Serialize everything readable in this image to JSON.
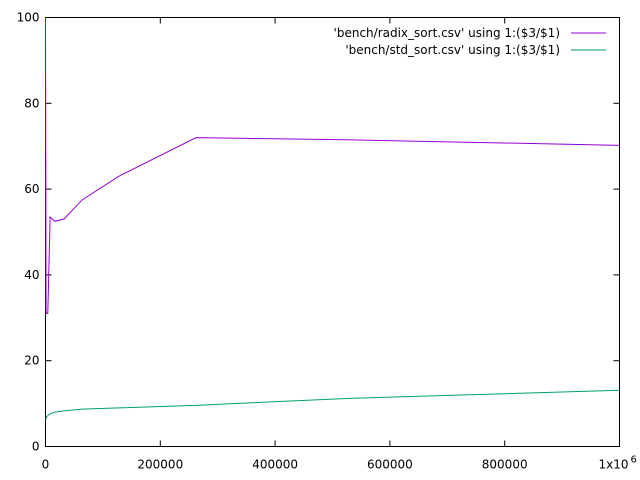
{
  "chart_data": {
    "type": "line",
    "xlim": [
      0,
      1000000
    ],
    "ylim": [
      0,
      100
    ],
    "x_ticks": [
      0,
      200000,
      400000,
      600000,
      800000,
      1000000
    ],
    "x_tick_labels": [
      "0",
      "200000",
      "400000",
      "600000",
      "800000",
      "1x10"
    ],
    "x_exponent": "6",
    "y_ticks": [
      0,
      20,
      40,
      60,
      80,
      100
    ],
    "y_tick_labels": [
      "0",
      "20",
      "40",
      "60",
      "80",
      "100"
    ],
    "grid": false,
    "legend": "top-right",
    "series": [
      {
        "name": "'bench/radix_sort.csv' using 1:($3/$1)",
        "color": "#9400d3",
        "x": [
          1,
          1000,
          2000,
          4000,
          8000,
          16000,
          32000,
          64000,
          128000,
          262144,
          524288,
          1000000
        ],
        "y": [
          100,
          31.5,
          31,
          31,
          53.5,
          52.5,
          53,
          57.5,
          63,
          72,
          71.5,
          70.2
        ]
      },
      {
        "name": "'bench/std_sort.csv' using  1:($3/$1)",
        "color": "#009e73",
        "x": [
          1,
          1000,
          2000,
          4000,
          8000,
          16000,
          32000,
          64000,
          128000,
          262144,
          524288,
          1000000
        ],
        "y": [
          6.2,
          6.5,
          6.9,
          7.2,
          7.6,
          8.0,
          8.3,
          8.7,
          9.0,
          9.6,
          11.2,
          13.1
        ]
      }
    ]
  }
}
